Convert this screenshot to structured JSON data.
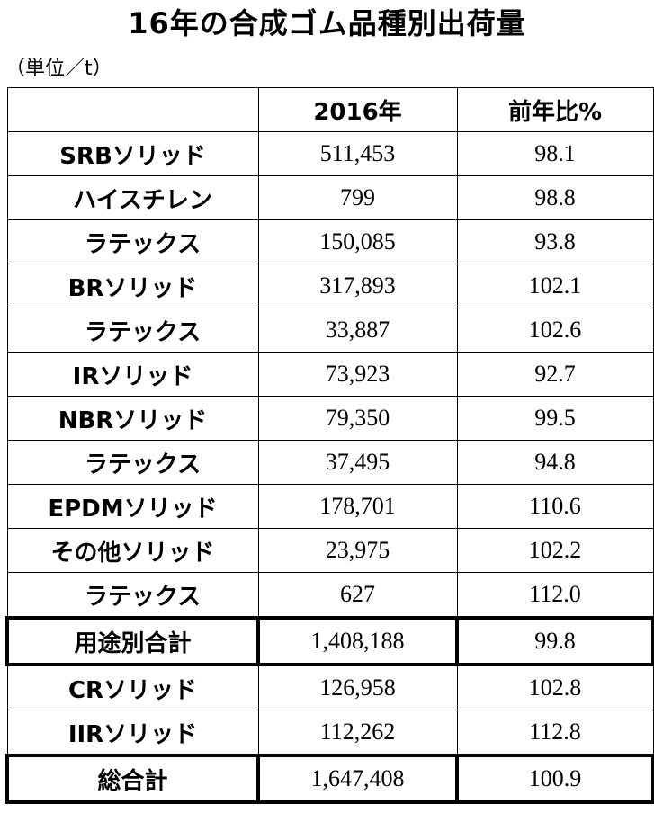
{
  "title": "16年の合成ゴム品種別出荷量",
  "unit": "（単位／t）",
  "table": {
    "headers": [
      "",
      "2016年",
      "前年比%"
    ],
    "rows": [
      {
        "label": "SRBソリッド",
        "value": "511,453",
        "ratio": "98.1",
        "sub": false,
        "total": false
      },
      {
        "label": "ハイスチレン",
        "value": "799",
        "ratio": "98.8",
        "sub": true,
        "total": false
      },
      {
        "label": "ラテックス",
        "value": "150,085",
        "ratio": "93.8",
        "sub": true,
        "total": false
      },
      {
        "label": "BRソリッド",
        "value": "317,893",
        "ratio": "102.1",
        "sub": false,
        "total": false
      },
      {
        "label": "ラテックス",
        "value": "33,887",
        "ratio": "102.6",
        "sub": true,
        "total": false
      },
      {
        "label": "IRソリッド",
        "value": "73,923",
        "ratio": "92.7",
        "sub": false,
        "total": false
      },
      {
        "label": "NBRソリッド",
        "value": "79,350",
        "ratio": "99.5",
        "sub": false,
        "total": false
      },
      {
        "label": "ラテックス",
        "value": "37,495",
        "ratio": "94.8",
        "sub": true,
        "total": false
      },
      {
        "label": "EPDMソリッド",
        "value": "178,701",
        "ratio": "110.6",
        "sub": false,
        "total": false
      },
      {
        "label": "その他ソリッド",
        "value": "23,975",
        "ratio": "102.2",
        "sub": false,
        "total": false
      },
      {
        "label": "ラテックス",
        "value": "627",
        "ratio": "112.0",
        "sub": true,
        "total": false
      },
      {
        "label": "用途別合計",
        "value": "1,408,188",
        "ratio": "99.8",
        "sub": false,
        "total": true
      },
      {
        "label": "CRソリッド",
        "value": "126,958",
        "ratio": "102.8",
        "sub": false,
        "total": false
      },
      {
        "label": "IIRソリッド",
        "value": "112,262",
        "ratio": "112.8",
        "sub": false,
        "total": false
      },
      {
        "label": "総合計",
        "value": "1,647,408",
        "ratio": "100.9",
        "sub": false,
        "total": true
      }
    ]
  }
}
